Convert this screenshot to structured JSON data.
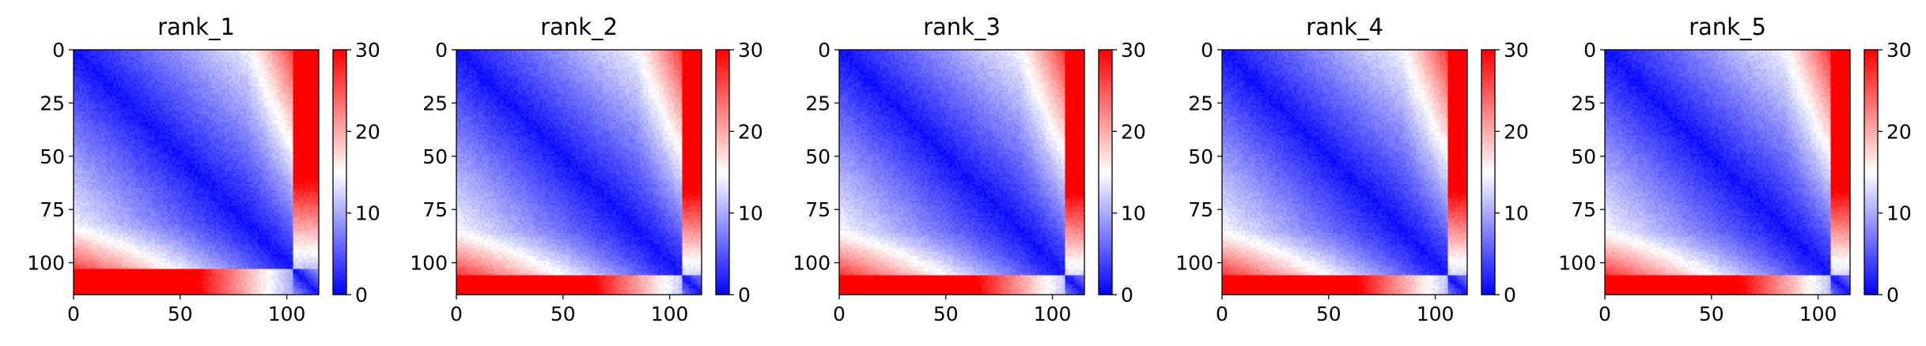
{
  "chart_data": {
    "type": "heatmap",
    "colormap": "bwr",
    "colorbar": {
      "range": [
        0,
        30
      ],
      "ticks": [
        0,
        10,
        20,
        30
      ],
      "tick_labels": [
        "0",
        "10",
        "20",
        "30"
      ]
    },
    "x_ticks": [
      0,
      50,
      100
    ],
    "x_tick_labels": [
      "0",
      "50",
      "100"
    ],
    "y_ticks": [
      0,
      25,
      50,
      75,
      100
    ],
    "y_tick_labels": [
      "0",
      "25",
      "50",
      "75",
      "100"
    ],
    "matrix_size": 115,
    "xlim": [
      0,
      115
    ],
    "ylim": [
      115,
      0
    ],
    "panels": [
      {
        "title": "rank_1",
        "domain_end": 103,
        "bottom_tail": 16,
        "right_tail": 20
      },
      {
        "title": "rank_2",
        "domain_end": 106,
        "bottom_tail": 20,
        "right_tail": 22
      },
      {
        "title": "rank_3",
        "domain_end": 106,
        "bottom_tail": 20,
        "right_tail": 23
      },
      {
        "title": "rank_4",
        "domain_end": 106,
        "bottom_tail": 19,
        "right_tail": 22
      },
      {
        "title": "rank_5",
        "domain_end": 106,
        "bottom_tail": 19,
        "right_tail": 22
      }
    ]
  }
}
